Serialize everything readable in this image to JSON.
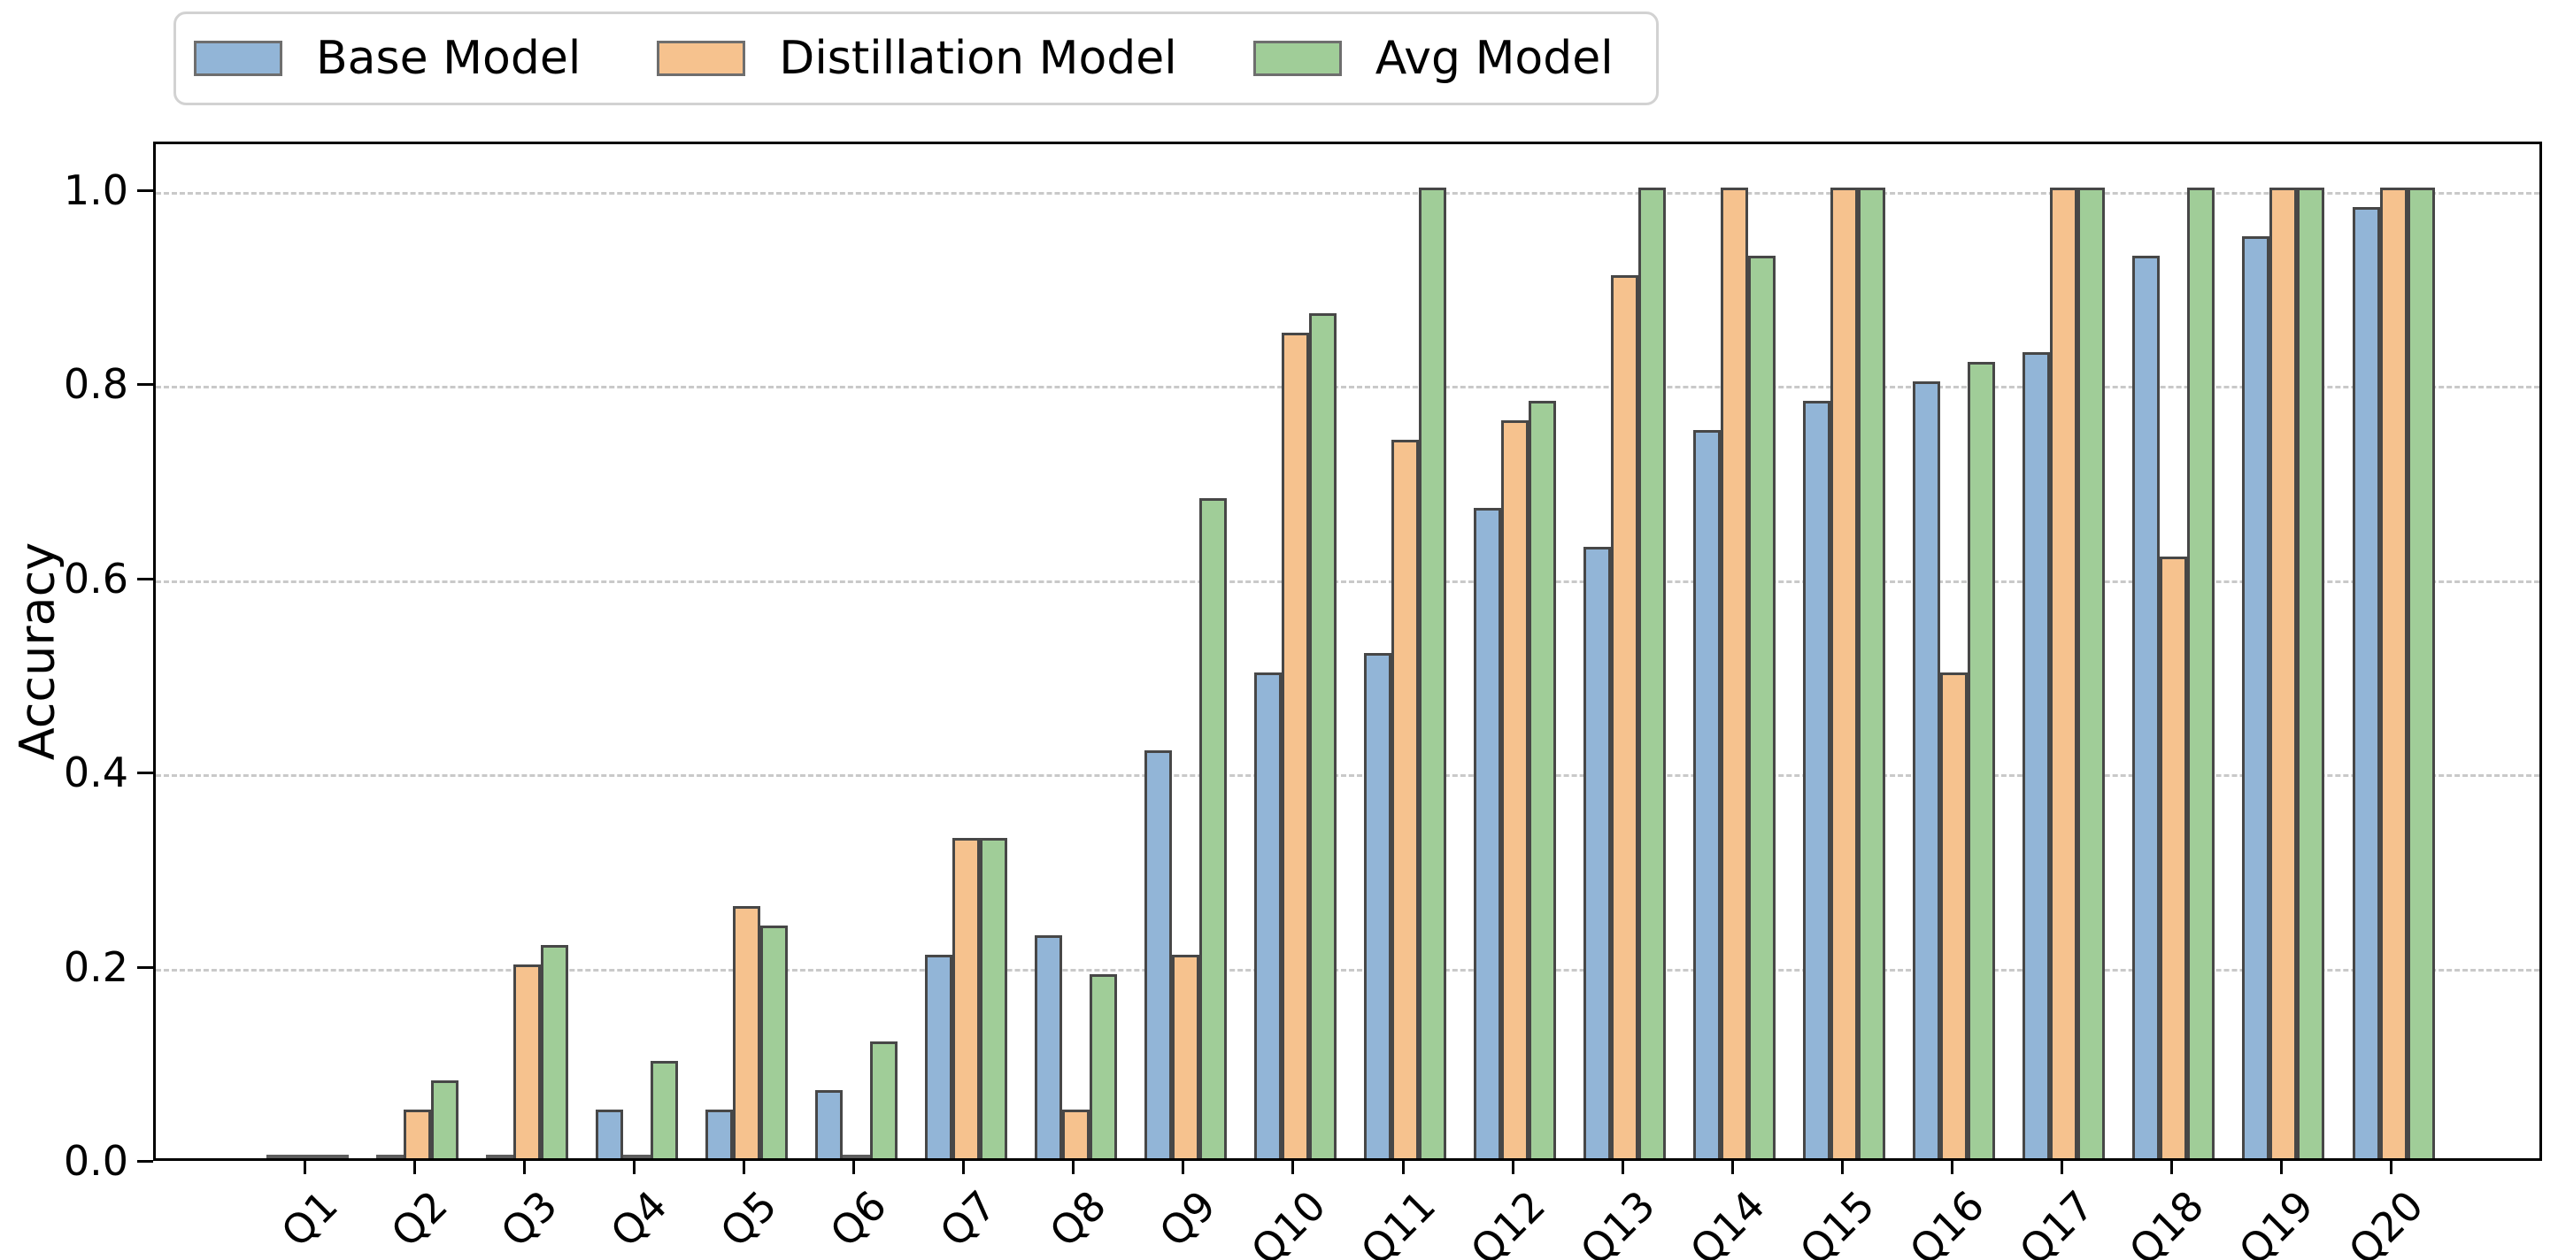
{
  "chart_data": {
    "type": "bar",
    "title": "",
    "xlabel": "",
    "ylabel": "Accuracy",
    "categories": [
      "Q1",
      "Q2",
      "Q3",
      "Q4",
      "Q5",
      "Q6",
      "Q7",
      "Q8",
      "Q9",
      "Q10",
      "Q11",
      "Q12",
      "Q13",
      "Q14",
      "Q15",
      "Q16",
      "Q17",
      "Q18",
      "Q19",
      "Q20"
    ],
    "series": [
      {
        "name": "Base Model",
        "color": "#92b5d7",
        "values": [
          0.0,
          0.0,
          0.0,
          0.05,
          0.05,
          0.07,
          0.21,
          0.23,
          0.42,
          0.5,
          0.52,
          0.67,
          0.63,
          0.75,
          0.78,
          0.8,
          0.83,
          0.93,
          0.95,
          0.98
        ]
      },
      {
        "name": "Distillation Model",
        "color": "#f6c28e",
        "values": [
          0.0,
          0.05,
          0.2,
          0.0,
          0.26,
          0.0,
          0.33,
          0.05,
          0.21,
          0.85,
          0.74,
          0.76,
          0.91,
          1.0,
          1.0,
          0.5,
          1.0,
          0.62,
          1.0,
          1.0
        ]
      },
      {
        "name": "Avg Model",
        "color": "#a0cd98",
        "values": [
          0.0,
          0.08,
          0.22,
          0.1,
          0.24,
          0.12,
          0.33,
          0.19,
          0.68,
          0.87,
          1.0,
          0.78,
          1.0,
          0.93,
          1.0,
          0.82,
          1.0,
          1.0,
          1.0,
          1.0
        ]
      }
    ],
    "yticks": [
      "0.0",
      "0.2",
      "0.4",
      "0.6",
      "0.8",
      "1.0"
    ],
    "ylim": [
      0,
      1.05
    ],
    "grid": "horizontal-dashed",
    "gridline_color": "#c9c9c9",
    "bar_edge_color": "#474747",
    "legend_position": "top-left"
  }
}
